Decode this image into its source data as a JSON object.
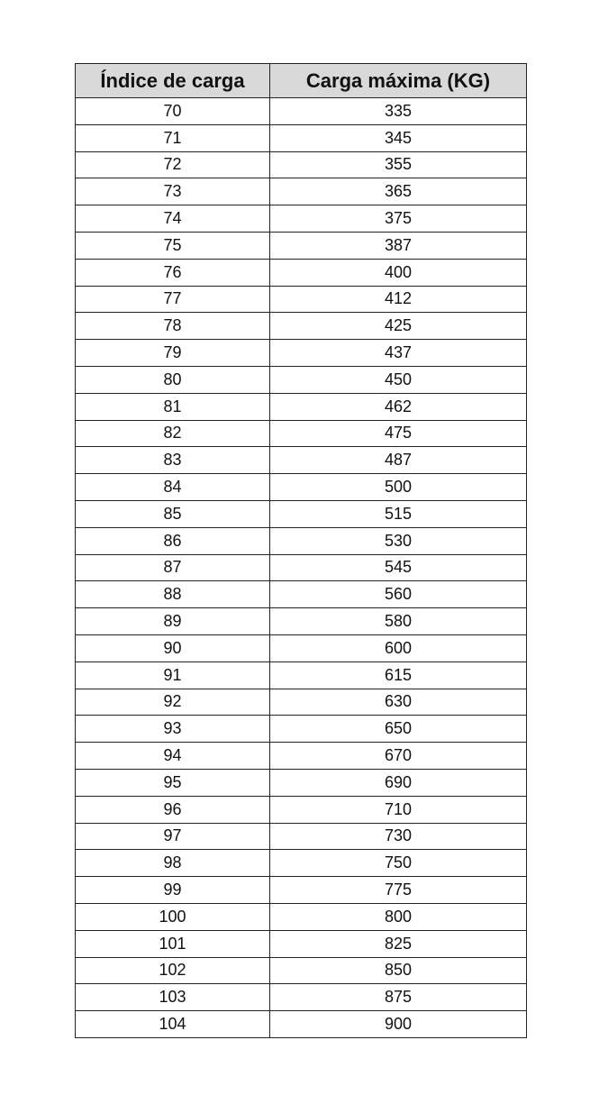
{
  "table": {
    "headers": [
      "Índice de carga",
      "Carga máxima (KG)"
    ],
    "rows": [
      [
        "70",
        "335"
      ],
      [
        "71",
        "345"
      ],
      [
        "72",
        "355"
      ],
      [
        "73",
        "365"
      ],
      [
        "74",
        "375"
      ],
      [
        "75",
        "387"
      ],
      [
        "76",
        "400"
      ],
      [
        "77",
        "412"
      ],
      [
        "78",
        "425"
      ],
      [
        "79",
        "437"
      ],
      [
        "80",
        "450"
      ],
      [
        "81",
        "462"
      ],
      [
        "82",
        "475"
      ],
      [
        "83",
        "487"
      ],
      [
        "84",
        "500"
      ],
      [
        "85",
        "515"
      ],
      [
        "86",
        "530"
      ],
      [
        "87",
        "545"
      ],
      [
        "88",
        "560"
      ],
      [
        "89",
        "580"
      ],
      [
        "90",
        "600"
      ],
      [
        "91",
        "615"
      ],
      [
        "92",
        "630"
      ],
      [
        "93",
        "650"
      ],
      [
        "94",
        "670"
      ],
      [
        "95",
        "690"
      ],
      [
        "96",
        "710"
      ],
      [
        "97",
        "730"
      ],
      [
        "98",
        "750"
      ],
      [
        "99",
        "775"
      ],
      [
        "100",
        "800"
      ],
      [
        "101",
        "825"
      ],
      [
        "102",
        "850"
      ],
      [
        "103",
        "875"
      ],
      [
        "104",
        "900"
      ]
    ]
  },
  "colors": {
    "header_bg": "#d9d9d9",
    "border": "#222222"
  }
}
